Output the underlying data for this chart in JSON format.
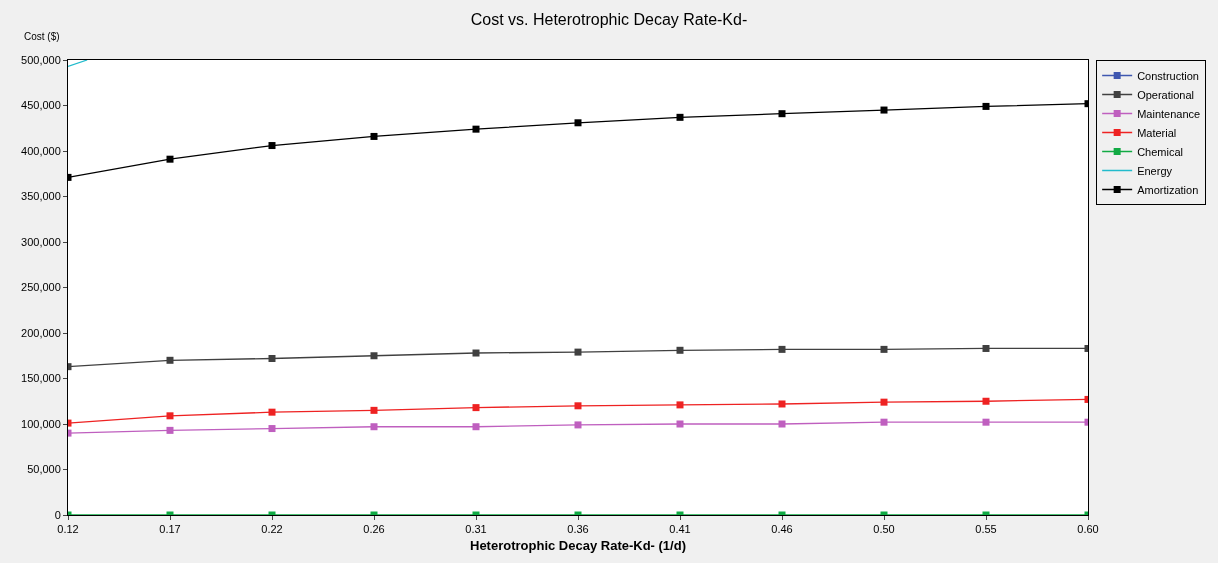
{
  "chart_data": {
    "type": "line",
    "title": "Cost vs. Heterotrophic Decay Rate-Kd-",
    "xlabel": "Heterotrophic Decay Rate-Kd- (1/d)",
    "ylabel": "Cost ($)",
    "x": [
      0.12,
      0.168,
      0.216,
      0.264,
      0.312,
      0.36,
      0.408,
      0.456,
      0.504,
      0.552,
      0.6
    ],
    "series": [
      {
        "name": "Construction",
        "color": "#3f57b0",
        "values": [
          null,
          null,
          null,
          null,
          null,
          null,
          null,
          null,
          null,
          null,
          null
        ]
      },
      {
        "name": "Operational",
        "color": "#404040",
        "values": [
          163000,
          170000,
          172000,
          175000,
          178000,
          179000,
          181000,
          182000,
          182000,
          183000,
          183000
        ]
      },
      {
        "name": "Maintenance",
        "color": "#bf5fbf",
        "values": [
          90000,
          93000,
          95000,
          97000,
          97000,
          99000,
          100000,
          100000,
          102000,
          102000,
          102000
        ]
      },
      {
        "name": "Material",
        "color": "#ee2222",
        "values": [
          101000,
          109000,
          113000,
          115000,
          118000,
          120000,
          121000,
          122000,
          124000,
          125000,
          127000
        ]
      },
      {
        "name": "Chemical",
        "color": "#11aa44",
        "values": [
          0,
          0,
          0,
          0,
          0,
          0,
          0,
          0,
          0,
          0,
          0
        ]
      },
      {
        "name": "Energy",
        "color": "#22bbcc",
        "x": [
          0.12,
          0.129
        ],
        "values": [
          493000,
          500000
        ],
        "marker": "none"
      },
      {
        "name": "Amortization",
        "color": "#000000",
        "values": [
          371000,
          391000,
          406000,
          416000,
          424000,
          431000,
          437000,
          441000,
          445000,
          449000,
          452000
        ]
      }
    ],
    "xlim": [
      0.12,
      0.6
    ],
    "xticks": [
      {
        "value": 0.12,
        "label": "0.12"
      },
      {
        "value": 0.168,
        "label": "0.17"
      },
      {
        "value": 0.216,
        "label": "0.22"
      },
      {
        "value": 0.264,
        "label": "0.26"
      },
      {
        "value": 0.312,
        "label": "0.31"
      },
      {
        "value": 0.36,
        "label": "0.36"
      },
      {
        "value": 0.408,
        "label": "0.41"
      },
      {
        "value": 0.456,
        "label": "0.46"
      },
      {
        "value": 0.504,
        "label": "0.50"
      },
      {
        "value": 0.552,
        "label": "0.55"
      },
      {
        "value": 0.6,
        "label": "0.60"
      }
    ],
    "ylim": [
      0,
      500000
    ],
    "yticks": [
      {
        "value": 0,
        "label": "0"
      },
      {
        "value": 50000,
        "label": "50,000"
      },
      {
        "value": 100000,
        "label": "100,000"
      },
      {
        "value": 150000,
        "label": "150,000"
      },
      {
        "value": 200000,
        "label": "200,000"
      },
      {
        "value": 250000,
        "label": "250,000"
      },
      {
        "value": 300000,
        "label": "300,000"
      },
      {
        "value": 350000,
        "label": "350,000"
      },
      {
        "value": 400000,
        "label": "400,000"
      },
      {
        "value": 450000,
        "label": "450,000"
      },
      {
        "value": 500000,
        "label": "500,000"
      }
    ],
    "grid": false,
    "legend": "right",
    "marker": "square",
    "line_style": "solid"
  }
}
